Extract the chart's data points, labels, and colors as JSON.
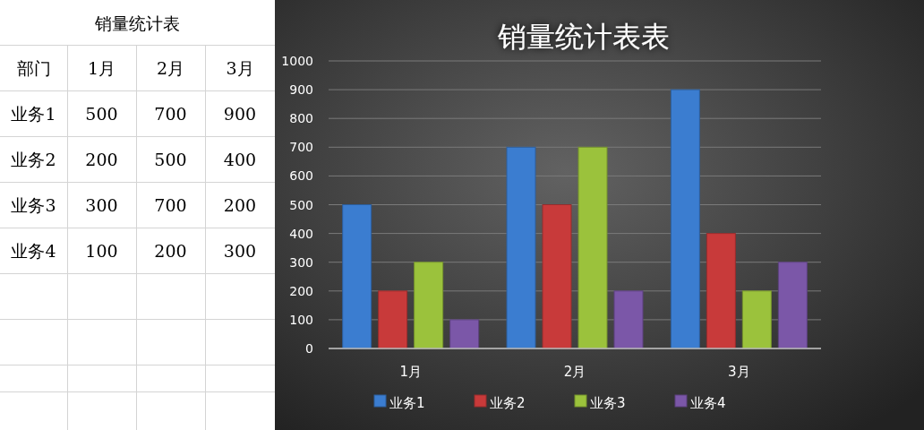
{
  "chart_data": [
    {
      "type": "other",
      "title": "销量统计表",
      "annotations": [
        "部门",
        "1月",
        "2月",
        "3月",
        "业务1",
        "500",
        "700",
        "900",
        "业务2",
        "200",
        "500",
        "400",
        "业务3",
        "300",
        "700",
        "200",
        "业务4",
        "100",
        "200",
        "300"
      ]
    },
    {
      "type": "bar",
      "title": "销量统计表表",
      "categories": [
        "1月",
        "2月",
        "3月"
      ],
      "series": [
        {
          "name": "业务1",
          "color": "#3b7dd0",
          "values": [
            500,
            700,
            900
          ]
        },
        {
          "name": "业务2",
          "color": "#c83a3a",
          "values": [
            200,
            500,
            400
          ]
        },
        {
          "name": "业务3",
          "color": "#9bc23c",
          "values": [
            300,
            700,
            200
          ]
        },
        {
          "name": "业务4",
          "color": "#7b57a8",
          "values": [
            100,
            200,
            300
          ]
        }
      ],
      "ylim": [
        0,
        1000
      ],
      "yticks": [
        0,
        100,
        200,
        300,
        400,
        500,
        600,
        700,
        800,
        900,
        1000
      ],
      "grid": "y",
      "legend": "bottom"
    }
  ]
}
